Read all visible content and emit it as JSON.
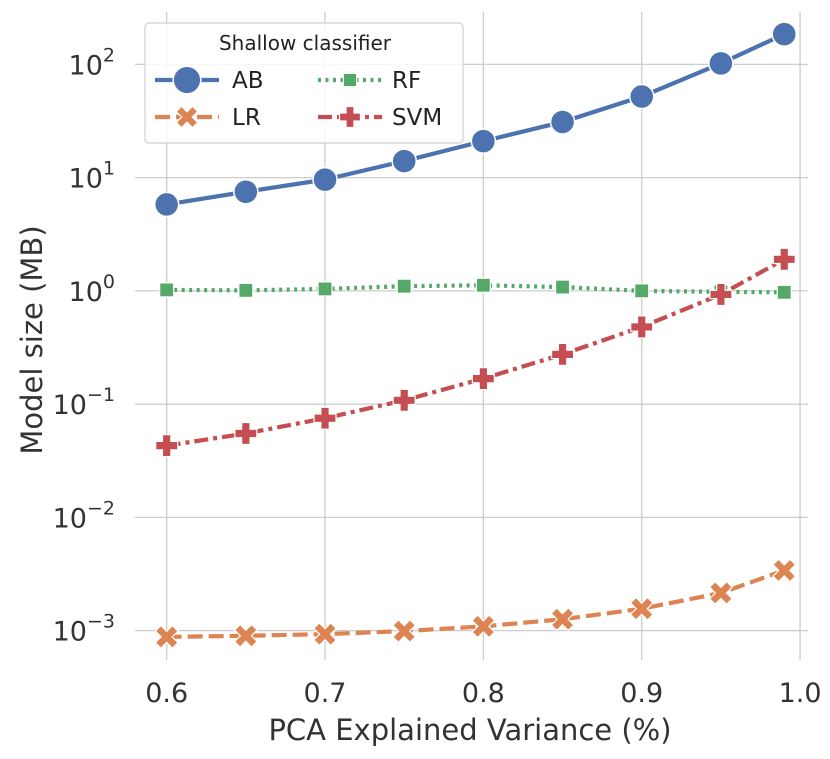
{
  "chart_data": {
    "type": "line",
    "title": "",
    "xlabel": "PCA Explained Variance (%)",
    "ylabel": "Model size (MB)",
    "x": [
      0.6,
      0.65,
      0.7,
      0.75,
      0.8,
      0.85,
      0.9,
      0.95,
      0.99
    ],
    "xlim": [
      0.58,
      1.005
    ],
    "ylim": [
      0.00055,
      290
    ],
    "yscale": "log",
    "grid": true,
    "xticks": [
      {
        "value": 0.6,
        "label": "0.6"
      },
      {
        "value": 0.7,
        "label": "0.7"
      },
      {
        "value": 0.8,
        "label": "0.8"
      },
      {
        "value": 0.9,
        "label": "0.9"
      },
      {
        "value": 1.0,
        "label": "1.0"
      }
    ],
    "yticks": [
      {
        "value": 0.001,
        "base": "10",
        "exp": "−3"
      },
      {
        "value": 0.01,
        "base": "10",
        "exp": "−2"
      },
      {
        "value": 0.1,
        "base": "10",
        "exp": "−1"
      },
      {
        "value": 1,
        "base": "10",
        "exp": "0"
      },
      {
        "value": 10,
        "base": "10",
        "exp": "1"
      },
      {
        "value": 100,
        "base": "10",
        "exp": "2"
      }
    ],
    "legend": {
      "title": "Shallow classifier",
      "position": "top-left",
      "ncol": 2
    },
    "series": [
      {
        "name": "AB",
        "color": "#4c72b0",
        "marker": "circle",
        "dash": "solid",
        "values": [
          5.8,
          7.5,
          9.6,
          14,
          21,
          31,
          52,
          102,
          185
        ]
      },
      {
        "name": "LR",
        "color": "#dd8452",
        "marker": "x",
        "dash": "dashed",
        "values": [
          0.00088,
          0.0009,
          0.00093,
          0.00099,
          0.00109,
          0.00126,
          0.00156,
          0.00215,
          0.0034
        ]
      },
      {
        "name": "RF",
        "color": "#55a868",
        "marker": "square",
        "dash": "dotted",
        "values": [
          1.02,
          1.01,
          1.04,
          1.1,
          1.12,
          1.08,
          1.0,
          0.98,
          0.97
        ]
      },
      {
        "name": "SVM",
        "color": "#c44e52",
        "marker": "plus",
        "dash": "dashdot",
        "values": [
          0.043,
          0.055,
          0.075,
          0.108,
          0.168,
          0.275,
          0.48,
          0.93,
          1.9
        ]
      }
    ],
    "legend_order": [
      "AB",
      "RF",
      "LR",
      "SVM"
    ]
  }
}
